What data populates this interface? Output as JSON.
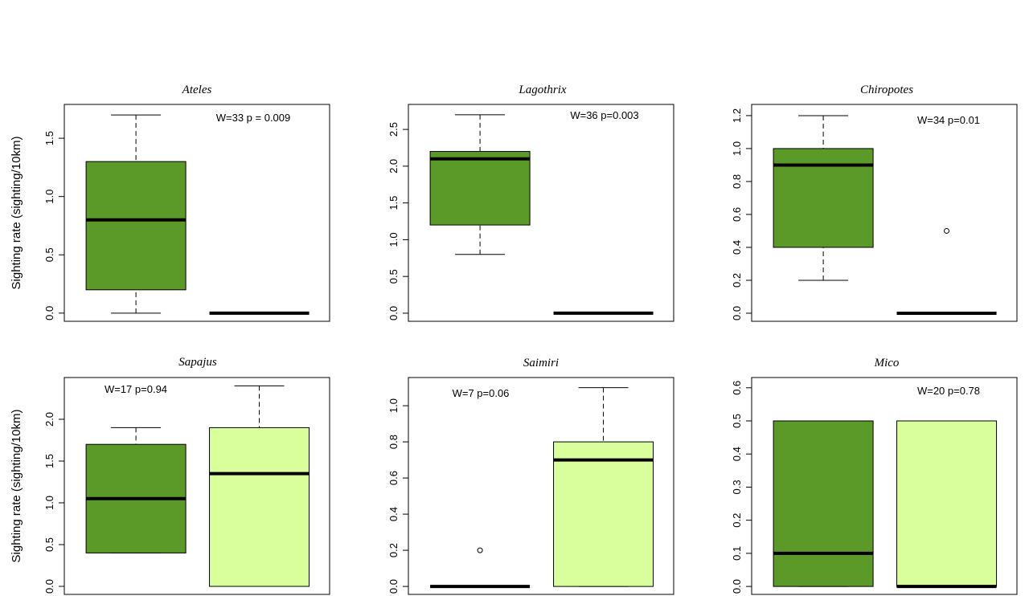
{
  "chart_data": [
    {
      "type": "box",
      "title": "Ateles",
      "annotation": "W=33  p = 0.009",
      "ylabel": "Sighting rate (sighting/10km)",
      "ylim": [
        -0.07,
        1.79
      ],
      "yticks": [
        {
          "value": 0,
          "label": "0.0"
        },
        0.5,
        {
          "value": 1,
          "label": "1.0"
        },
        1.5
      ],
      "boxes": [
        {
          "color": "#5b9a28",
          "min": 0,
          "q1": 0.2,
          "median": 0.8,
          "q3": 1.3,
          "max": 1.7
        },
        {
          "color": "#d9ff9c",
          "min": 0,
          "q1": 0,
          "median": 0,
          "q3": 0,
          "max": 0
        }
      ]
    },
    {
      "type": "box",
      "title": "Lagothrix",
      "annotation": "W=36 p=0.003",
      "ylim": [
        -0.11,
        2.84
      ],
      "yticks": [
        {
          "value": 0,
          "label": "0.0"
        },
        0.5,
        {
          "value": 1,
          "label": "1.0"
        },
        1.5,
        {
          "value": 2,
          "label": "2.0"
        },
        2.5
      ],
      "boxes": [
        {
          "color": "#5b9a28",
          "min": 0.8,
          "q1": 1.2,
          "median": 2.1,
          "q3": 2.2,
          "max": 2.7
        },
        {
          "color": "#d9ff9c",
          "min": 0,
          "q1": 0,
          "median": 0,
          "q3": 0,
          "max": 0
        }
      ]
    },
    {
      "type": "box",
      "title": "Chiropotes",
      "annotation": "W=34 p=0.01",
      "ylim": [
        -0.049,
        1.268
      ],
      "yticks": [
        {
          "value": 0,
          "label": "0.0"
        },
        0.2,
        0.4,
        0.6,
        0.8,
        {
          "value": 1,
          "label": "1.0"
        },
        1.2
      ],
      "boxes": [
        {
          "color": "#5b9a28",
          "min": 0.2,
          "q1": 0.4,
          "median": 0.9,
          "q3": 1.0,
          "max": 1.2
        },
        {
          "color": "#d9ff9c",
          "min": 0,
          "q1": 0,
          "median": 0,
          "q3": 0,
          "max": 0,
          "outliers": [
            0.5
          ]
        }
      ]
    },
    {
      "type": "box",
      "title": "Sapajus",
      "annotation": "W=17 p=0.94",
      "ylabel": "Sighting rate (sighting/10km)",
      "ylim": [
        -0.096,
        2.5
      ],
      "yticks": [
        {
          "value": 0,
          "label": "0.0"
        },
        0.5,
        {
          "value": 1,
          "label": "1.0"
        },
        1.5,
        {
          "value": 2,
          "label": "2.0"
        }
      ],
      "boxes": [
        {
          "color": "#5b9a28",
          "min": 0.4,
          "q1": 0.4,
          "median": 1.05,
          "q3": 1.7,
          "max": 1.9
        },
        {
          "color": "#d9ff9c",
          "min": 0,
          "q1": 0,
          "median": 1.35,
          "q3": 1.9,
          "max": 2.4
        }
      ]
    },
    {
      "type": "box",
      "title": "Saimiri",
      "annotation": "W=7 p=0.06",
      "ylim": [
        -0.044,
        1.156
      ],
      "yticks": [
        {
          "value": 0,
          "label": "0.0"
        },
        0.2,
        0.4,
        0.6,
        0.8,
        {
          "value": 1,
          "label": "1.0"
        }
      ],
      "boxes": [
        {
          "color": "#5b9a28",
          "min": 0,
          "q1": 0,
          "median": 0,
          "q3": 0,
          "max": 0,
          "outliers": [
            0.2
          ]
        },
        {
          "color": "#d9ff9c",
          "min": 0,
          "q1": 0,
          "median": 0.7,
          "q3": 0.8,
          "max": 1.1
        }
      ]
    },
    {
      "type": "box",
      "title": "Mico",
      "annotation": "W=20 p=0.78",
      "ylim": [
        -0.024,
        0.631
      ],
      "yticks": [
        {
          "value": 0,
          "label": "0.0"
        },
        0.1,
        0.2,
        0.3,
        0.4,
        0.5,
        0.6
      ],
      "boxes": [
        {
          "color": "#5b9a28",
          "min": 0,
          "q1": 0,
          "median": 0.1,
          "q3": 0.5,
          "max": 0.5
        },
        {
          "color": "#d9ff9c",
          "min": 0,
          "q1": 0,
          "median": 0,
          "q3": 0.5,
          "max": 0.5
        }
      ]
    }
  ]
}
